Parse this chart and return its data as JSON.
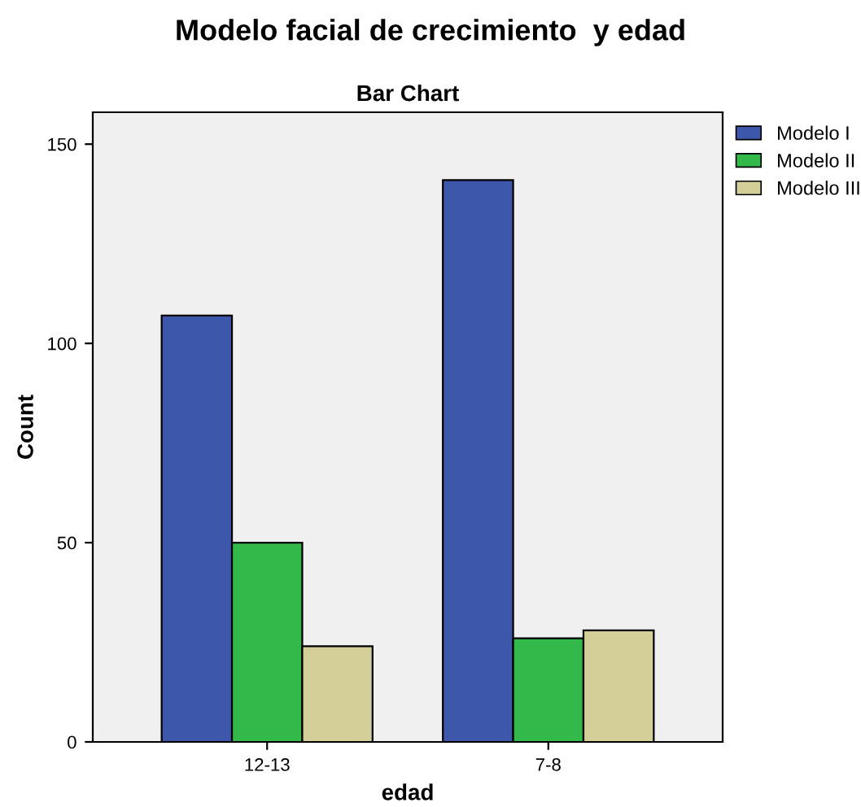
{
  "chart_data": {
    "type": "bar",
    "title": "Modelo facial de crecimiento  y edad",
    "subtitle": "Bar Chart",
    "xlabel": "edad",
    "ylabel": "Count",
    "categories": [
      "12-13",
      "7-8"
    ],
    "series": [
      {
        "name": "Modelo I",
        "color": "#3d57aa",
        "values": [
          107,
          141
        ]
      },
      {
        "name": "Modelo II",
        "color": "#33b84a",
        "values": [
          50,
          26
        ]
      },
      {
        "name": "Modelo III",
        "color": "#d4cf98",
        "values": [
          24,
          28
        ]
      }
    ],
    "ylim": [
      0,
      158
    ],
    "yticks": [
      0,
      50,
      100,
      150
    ],
    "grid": false,
    "legend": "top right"
  }
}
